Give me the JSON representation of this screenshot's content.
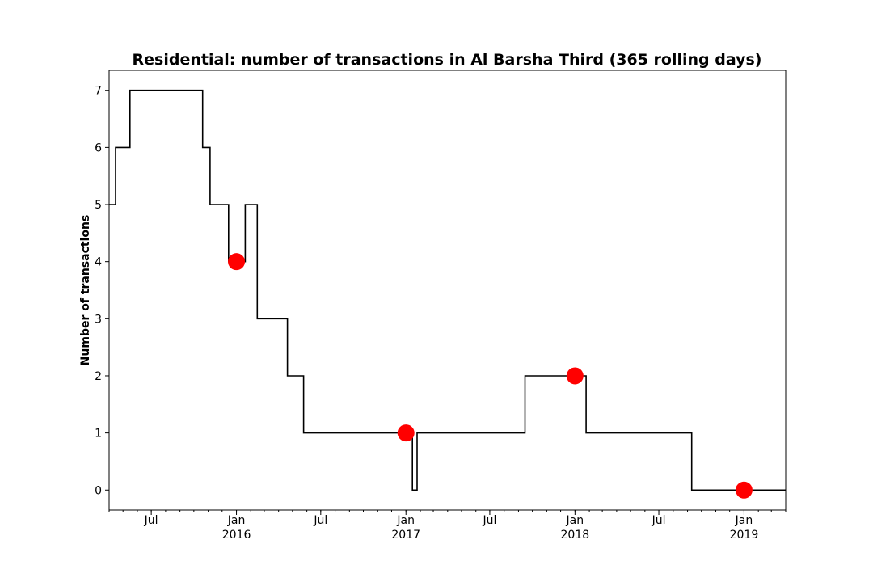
{
  "chart_data": {
    "type": "line",
    "title": "Residential: number of transactions in Al Barsha Third (365 rolling days)",
    "xlabel": "",
    "ylabel": "Number of transactions",
    "xlim": [
      "2015-04-01",
      "2019-04-01"
    ],
    "ylim": [
      -0.35,
      7.35
    ],
    "yticks": [
      0,
      1,
      2,
      3,
      4,
      5,
      6,
      7
    ],
    "xticks": [
      {
        "date": "2015-07-01",
        "label": "Jul",
        "sublabel": ""
      },
      {
        "date": "2016-01-01",
        "label": "Jan",
        "sublabel": "2016"
      },
      {
        "date": "2016-07-01",
        "label": "Jul",
        "sublabel": ""
      },
      {
        "date": "2017-01-01",
        "label": "Jan",
        "sublabel": "2017"
      },
      {
        "date": "2017-07-01",
        "label": "Jul",
        "sublabel": ""
      },
      {
        "date": "2018-01-01",
        "label": "Jan",
        "sublabel": "2018"
      },
      {
        "date": "2018-07-01",
        "label": "Jul",
        "sublabel": ""
      },
      {
        "date": "2019-01-01",
        "label": "Jan",
        "sublabel": "2019"
      }
    ],
    "grid": false,
    "series": [
      {
        "type": "step",
        "color": "#000000",
        "points": [
          {
            "x": "2015-04-01",
            "y": 5
          },
          {
            "x": "2015-04-15",
            "y": 6
          },
          {
            "x": "2015-05-16",
            "y": 7
          },
          {
            "x": "2015-10-20",
            "y": 6
          },
          {
            "x": "2015-11-05",
            "y": 5
          },
          {
            "x": "2015-12-15",
            "y": 4
          },
          {
            "x": "2016-01-20",
            "y": 5
          },
          {
            "x": "2016-02-15",
            "y": 3
          },
          {
            "x": "2016-04-20",
            "y": 2
          },
          {
            "x": "2016-05-25",
            "y": 1
          },
          {
            "x": "2017-01-15",
            "y": 0
          },
          {
            "x": "2017-01-25",
            "y": 1
          },
          {
            "x": "2017-09-15",
            "y": 2
          },
          {
            "x": "2018-01-25",
            "y": 1
          },
          {
            "x": "2018-09-10",
            "y": 0
          },
          {
            "x": "2019-04-01",
            "y": 0
          }
        ]
      },
      {
        "type": "scatter",
        "color": "#ff0000",
        "points": [
          {
            "x": "2016-01-01",
            "y": 4
          },
          {
            "x": "2017-01-01",
            "y": 1
          },
          {
            "x": "2018-01-01",
            "y": 2
          },
          {
            "x": "2019-01-01",
            "y": 0
          }
        ]
      }
    ]
  }
}
